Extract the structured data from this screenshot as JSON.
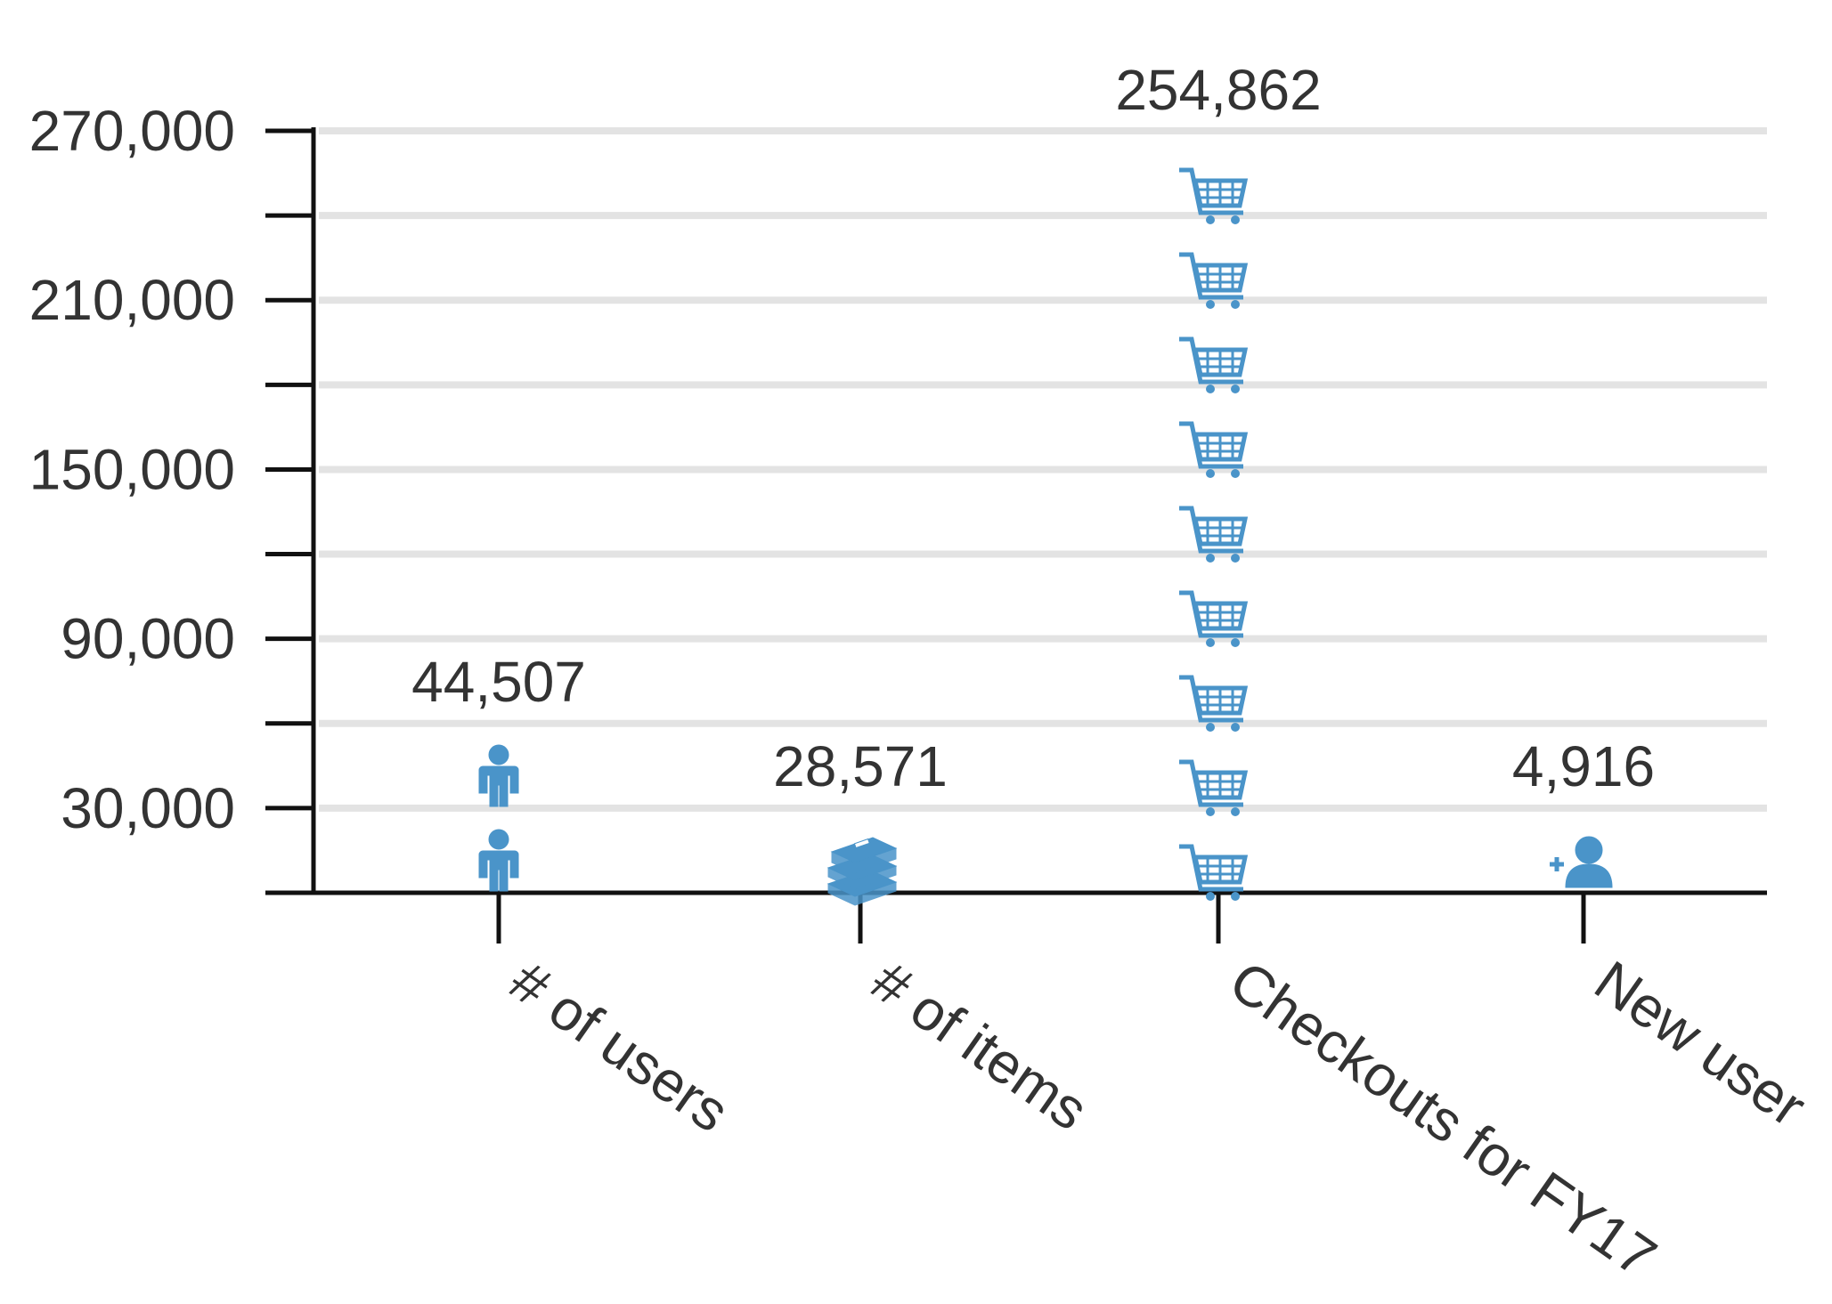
{
  "chart_data": {
    "type": "bar",
    "categories": [
      "# of users",
      "# of items",
      "Checkouts for FY17",
      "New user"
    ],
    "values": [
      44507,
      28571,
      254862,
      4916
    ],
    "value_labels": [
      "44,507",
      "28,571",
      "254,862",
      "4,916"
    ],
    "icons": [
      "person-icon",
      "books-icon",
      "shopping-cart-icon",
      "add-user-icon"
    ],
    "yticks": [
      30000,
      90000,
      150000,
      210000,
      270000
    ],
    "ytick_labels": [
      "30,000",
      "90,000",
      "150,000",
      "210,000",
      "270,000"
    ],
    "ylim": [
      0,
      270000
    ],
    "grid": true,
    "accent_color": "#4a94c9"
  }
}
